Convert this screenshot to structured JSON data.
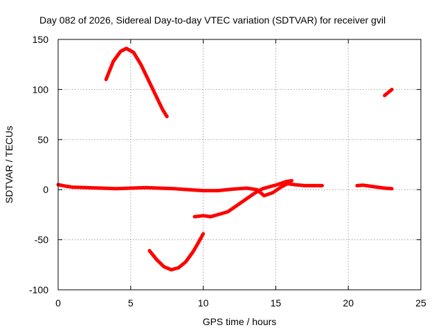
{
  "chart_data": {
    "type": "scatter",
    "title": "Day 082 of 2026, Sidereal Day-to-day VTEC variation (SDTVAR) for receiver gvil",
    "xlabel": "GPS time / hours",
    "ylabel": "SDTVAR / TECUs",
    "xlim": [
      0,
      25
    ],
    "ylim": [
      -100,
      150
    ],
    "xticks": [
      0,
      5,
      10,
      15,
      20,
      25
    ],
    "yticks": [
      -100,
      -50,
      0,
      50,
      100,
      150
    ],
    "grid": true,
    "series_color": "#ff0000",
    "series": [
      {
        "name": "baseline-trace",
        "points": [
          [
            0,
            5
          ],
          [
            0.5,
            3.5
          ],
          [
            1,
            2.5
          ],
          [
            2,
            2
          ],
          [
            3,
            1.5
          ],
          [
            4,
            1
          ],
          [
            5,
            1.5
          ],
          [
            6,
            2
          ],
          [
            7,
            1.5
          ],
          [
            8,
            1
          ],
          [
            9,
            0
          ],
          [
            10,
            -1
          ],
          [
            11,
            -1
          ],
          [
            12,
            0.5
          ],
          [
            13,
            1.5
          ],
          [
            13.7,
            0
          ],
          [
            14.2,
            -6
          ],
          [
            14.8,
            -3
          ],
          [
            15.3,
            2
          ],
          [
            15.8,
            6
          ],
          [
            16.3,
            5
          ],
          [
            17,
            4
          ],
          [
            17.5,
            4
          ],
          [
            18.2,
            4
          ]
        ]
      },
      {
        "name": "hump-arc",
        "points": [
          [
            3.3,
            110
          ],
          [
            3.8,
            128
          ],
          [
            4.3,
            138
          ],
          [
            4.7,
            141
          ],
          [
            5.2,
            137
          ],
          [
            5.7,
            125
          ],
          [
            6.2,
            110
          ],
          [
            6.7,
            95
          ],
          [
            7.2,
            80
          ],
          [
            7.5,
            73
          ]
        ]
      },
      {
        "name": "dip-arc",
        "points": [
          [
            6.3,
            -61
          ],
          [
            6.8,
            -70
          ],
          [
            7.3,
            -77
          ],
          [
            7.8,
            -80
          ],
          [
            8.3,
            -78
          ],
          [
            8.8,
            -72
          ],
          [
            9.3,
            -62
          ],
          [
            9.7,
            -52
          ],
          [
            10,
            -44
          ]
        ]
      },
      {
        "name": "rising-arc",
        "points": [
          [
            9.4,
            -27
          ],
          [
            10,
            -26
          ],
          [
            10.5,
            -27
          ],
          [
            11,
            -25
          ],
          [
            11.7,
            -22
          ],
          [
            12.3,
            -16
          ],
          [
            13,
            -9
          ],
          [
            13.6,
            -3
          ],
          [
            14.1,
            1
          ],
          [
            14.6,
            3
          ],
          [
            15.1,
            5
          ],
          [
            15.7,
            8
          ],
          [
            16.1,
            9
          ]
        ]
      },
      {
        "name": "late-segment",
        "points": [
          [
            20.6,
            4
          ],
          [
            21,
            4.5
          ],
          [
            21.5,
            3.5
          ],
          [
            22,
            2.5
          ],
          [
            22.5,
            1.5
          ],
          [
            23,
            1
          ]
        ]
      },
      {
        "name": "late-arc",
        "points": [
          [
            22.5,
            94
          ],
          [
            23,
            100
          ]
        ]
      }
    ]
  }
}
